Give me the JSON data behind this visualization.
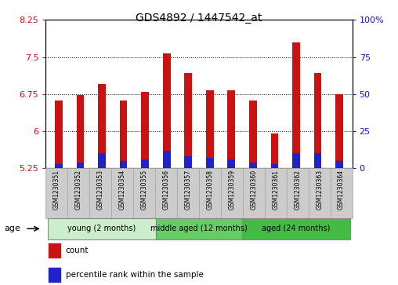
{
  "title": "GDS4892 / 1447542_at",
  "samples": [
    "GSM1230351",
    "GSM1230352",
    "GSM1230353",
    "GSM1230354",
    "GSM1230355",
    "GSM1230356",
    "GSM1230357",
    "GSM1230358",
    "GSM1230359",
    "GSM1230360",
    "GSM1230361",
    "GSM1230362",
    "GSM1230363",
    "GSM1230364"
  ],
  "count_values": [
    6.62,
    6.73,
    6.95,
    6.62,
    6.8,
    7.57,
    7.17,
    6.83,
    6.82,
    6.62,
    5.95,
    7.8,
    7.17,
    6.75
  ],
  "percentile_values": [
    3,
    4,
    10,
    5,
    6,
    12,
    8,
    7,
    6,
    4,
    3,
    10,
    10,
    5
  ],
  "base_value": 5.25,
  "ylim_left": [
    5.25,
    8.25
  ],
  "ylim_right": [
    0,
    100
  ],
  "yticks_left": [
    5.25,
    6.0,
    6.75,
    7.5,
    8.25
  ],
  "ytick_labels_left": [
    "5.25",
    "6",
    "6.75",
    "7.5",
    "8.25"
  ],
  "yticks_right": [
    0,
    25,
    50,
    75,
    100
  ],
  "ytick_labels_right": [
    "0",
    "25",
    "50",
    "75",
    "100%"
  ],
  "gridlines_at": [
    6.0,
    6.75,
    7.5
  ],
  "bar_color_red": "#cc1111",
  "bar_color_blue": "#2222cc",
  "bar_width": 0.35,
  "groups": [
    {
      "label": "young (2 months)",
      "samples_idx": [
        0,
        1,
        2,
        3,
        4
      ],
      "color": "#cceecc"
    },
    {
      "label": "middle aged (12 months)",
      "samples_idx": [
        5,
        6,
        7,
        8
      ],
      "color": "#66cc66"
    },
    {
      "label": "aged (24 months)",
      "samples_idx": [
        9,
        10,
        11,
        12,
        13
      ],
      "color": "#44bb44"
    }
  ],
  "age_label": "age",
  "legend_items": [
    {
      "label": "count",
      "color": "#cc1111"
    },
    {
      "label": "percentile rank within the sample",
      "color": "#2222cc"
    }
  ],
  "background_color": "#ffffff",
  "tick_color_left": "#cc1111",
  "tick_color_right": "#1111cc",
  "xtick_bg_color": "#cccccc",
  "xtick_bg_edge": "#aaaaaa"
}
